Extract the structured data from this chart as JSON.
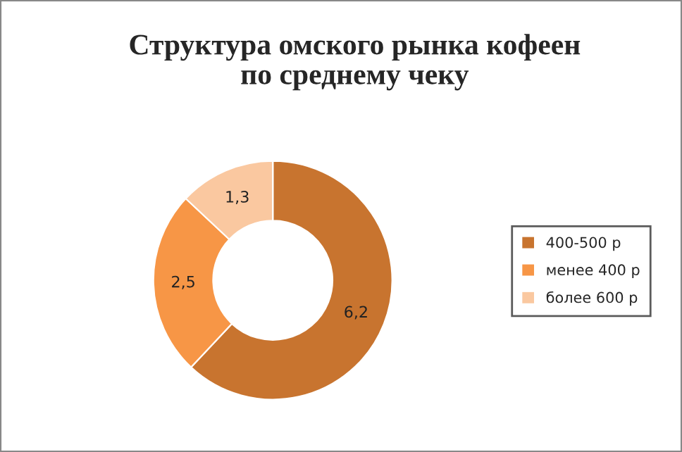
{
  "chart_data": {
    "type": "donut",
    "title": "Структура омского рынка кофеен\nпо среднему чеку",
    "categories": [
      "400-500 р",
      "менее 400 р",
      "более 600 р"
    ],
    "values": [
      6.2,
      2.5,
      1.3
    ],
    "value_labels": [
      "6,2",
      "2,5",
      "1,3"
    ],
    "colors": [
      "#c8742f",
      "#f79646",
      "#fac8a0"
    ],
    "legend": "right"
  }
}
